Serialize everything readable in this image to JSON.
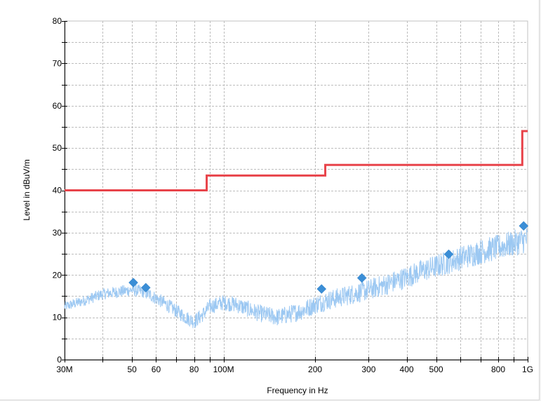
{
  "chart_data": {
    "type": "line",
    "title": "",
    "xlabel": "Frequency in Hz",
    "ylabel": "Level in dBuV/m",
    "x_scale": "log",
    "xlim": [
      30000000,
      1000000000
    ],
    "ylim": [
      0,
      80
    ],
    "grid": true,
    "legend": "none",
    "x_ticks": [
      {
        "value": 30000000,
        "label": "30M"
      },
      {
        "value": 50000000,
        "label": "50"
      },
      {
        "value": 60000000,
        "label": "60"
      },
      {
        "value": 80000000,
        "label": "80"
      },
      {
        "value": 100000000,
        "label": "100M"
      },
      {
        "value": 200000000,
        "label": "200"
      },
      {
        "value": 300000000,
        "label": "300"
      },
      {
        "value": 400000000,
        "label": "400"
      },
      {
        "value": 500000000,
        "label": "500"
      },
      {
        "value": 800000000,
        "label": "800"
      },
      {
        "value": 1000000000,
        "label": "1G"
      }
    ],
    "x_minor_ticks": [
      40000000,
      70000000,
      90000000,
      600000000,
      700000000,
      900000000
    ],
    "y_ticks": [
      0,
      10,
      20,
      30,
      40,
      50,
      60,
      70,
      80
    ],
    "series": [
      {
        "role": "limit",
        "color": "#e8434a",
        "style": "step",
        "points": [
          [
            30000000,
            40
          ],
          [
            88000000,
            40
          ],
          [
            88000000,
            43.5
          ],
          [
            216000000,
            43.5
          ],
          [
            216000000,
            46
          ],
          [
            960000000,
            46
          ],
          [
            960000000,
            54
          ],
          [
            1000000000,
            54
          ]
        ]
      },
      {
        "role": "measurement",
        "color": "#9cc8f2",
        "style": "noisy-band",
        "points": [
          [
            30000000,
            12.5
          ],
          [
            35000000,
            14
          ],
          [
            40000000,
            15.5
          ],
          [
            45000000,
            16
          ],
          [
            50000000,
            16.5
          ],
          [
            55000000,
            16
          ],
          [
            60000000,
            14.5
          ],
          [
            65000000,
            13
          ],
          [
            70000000,
            11.5
          ],
          [
            75000000,
            10
          ],
          [
            80000000,
            9
          ],
          [
            85000000,
            10.5
          ],
          [
            90000000,
            12.5
          ],
          [
            100000000,
            13.5
          ],
          [
            110000000,
            13
          ],
          [
            120000000,
            12
          ],
          [
            130000000,
            11
          ],
          [
            140000000,
            10.5
          ],
          [
            150000000,
            10
          ],
          [
            160000000,
            10.5
          ],
          [
            180000000,
            11.5
          ],
          [
            200000000,
            13
          ],
          [
            220000000,
            14
          ],
          [
            250000000,
            15
          ],
          [
            300000000,
            16.5
          ],
          [
            350000000,
            18
          ],
          [
            400000000,
            19.5
          ],
          [
            450000000,
            21
          ],
          [
            500000000,
            22
          ],
          [
            600000000,
            24
          ],
          [
            700000000,
            25.5
          ],
          [
            800000000,
            26.5
          ],
          [
            900000000,
            27.5
          ],
          [
            1000000000,
            28.5
          ]
        ]
      },
      {
        "role": "quasi-peak",
        "color": "#3b8ed6",
        "style": "markers",
        "marker": "diamond",
        "points": [
          [
            50500000,
            18.2
          ],
          [
            55500000,
            17
          ],
          [
            210000000,
            16.7
          ],
          [
            285000000,
            19.3
          ],
          [
            550000000,
            24.9
          ],
          [
            970000000,
            31.6
          ]
        ]
      }
    ]
  }
}
